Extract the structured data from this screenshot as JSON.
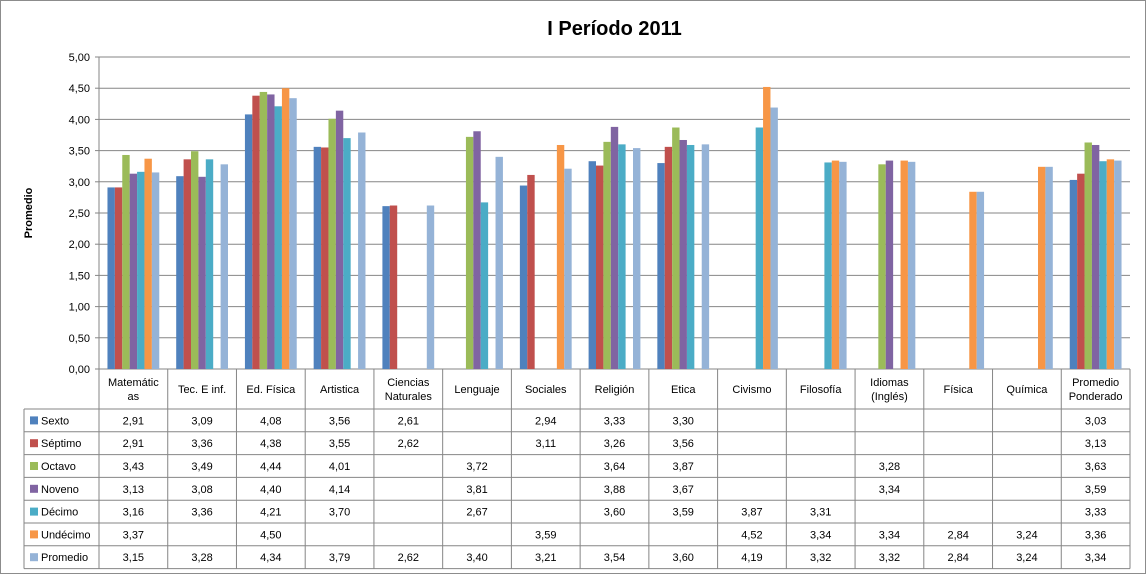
{
  "chart_data": {
    "type": "bar",
    "title": "I Período 2011",
    "ylabel": "Promedio",
    "xlabel": "",
    "ylim": [
      0,
      5
    ],
    "y_ticks": [
      "0,00",
      "0,50",
      "1,00",
      "1,50",
      "2,00",
      "2,50",
      "3,00",
      "3,50",
      "4,00",
      "4,50",
      "5,00"
    ],
    "grid": true,
    "legend_placement": "data-table-left",
    "categories": [
      "Matemáticas",
      "Tec. E inf.",
      "Ed. Física",
      "Artistica",
      "Ciencias Naturales",
      "Lenguaje",
      "Sociales",
      "Religión",
      "Etica",
      "Civismo",
      "Filosofía",
      "Idiomas (Inglés)",
      "Física",
      "Química",
      "Promedio Ponderado"
    ],
    "category_lines": [
      [
        "Matemátic",
        "as"
      ],
      [
        "Tec. E inf."
      ],
      [
        "Ed. Física"
      ],
      [
        "Artistica"
      ],
      [
        "Ciencias",
        "Naturales"
      ],
      [
        "Lenguaje"
      ],
      [
        "Sociales"
      ],
      [
        "Religión"
      ],
      [
        "Etica"
      ],
      [
        "Civismo"
      ],
      [
        "Filosofía"
      ],
      [
        "Idiomas",
        "(Inglés)"
      ],
      [
        "Física"
      ],
      [
        "Química"
      ],
      [
        "Promedio",
        "Ponderado"
      ]
    ],
    "series": [
      {
        "name": "Sexto",
        "color": "#4F81BD",
        "values": [
          2.91,
          3.09,
          4.08,
          3.56,
          2.61,
          null,
          2.94,
          3.33,
          3.3,
          null,
          null,
          null,
          null,
          null,
          3.03
        ],
        "labels": [
          "2,91",
          "3,09",
          "4,08",
          "3,56",
          "2,61",
          "",
          "2,94",
          "3,33",
          "3,30",
          "",
          "",
          "",
          "",
          "",
          "3,03"
        ]
      },
      {
        "name": "Séptimo",
        "color": "#C0504D",
        "values": [
          2.91,
          3.36,
          4.38,
          3.55,
          2.62,
          null,
          3.11,
          3.26,
          3.56,
          null,
          null,
          null,
          null,
          null,
          3.13
        ],
        "labels": [
          "2,91",
          "3,36",
          "4,38",
          "3,55",
          "2,62",
          "",
          "3,11",
          "3,26",
          "3,56",
          "",
          "",
          "",
          "",
          "",
          "3,13"
        ]
      },
      {
        "name": "Octavo",
        "color": "#9BBB59",
        "values": [
          3.43,
          3.49,
          4.44,
          4.01,
          null,
          3.72,
          null,
          3.64,
          3.87,
          null,
          null,
          3.28,
          null,
          null,
          3.63
        ],
        "labels": [
          "3,43",
          "3,49",
          "4,44",
          "4,01",
          "",
          "3,72",
          "",
          "3,64",
          "3,87",
          "",
          "",
          "3,28",
          "",
          "",
          "3,63"
        ]
      },
      {
        "name": "Noveno",
        "color": "#8064A2",
        "values": [
          3.13,
          3.08,
          4.4,
          4.14,
          null,
          3.81,
          null,
          3.88,
          3.67,
          null,
          null,
          3.34,
          null,
          null,
          3.59
        ],
        "labels": [
          "3,13",
          "3,08",
          "4,40",
          "4,14",
          "",
          "3,81",
          "",
          "3,88",
          "3,67",
          "",
          "",
          "3,34",
          "",
          "",
          "3,59"
        ]
      },
      {
        "name": "Décimo",
        "color": "#4BACC6",
        "values": [
          3.16,
          3.36,
          4.21,
          3.7,
          null,
          2.67,
          null,
          3.6,
          3.59,
          3.87,
          3.31,
          null,
          null,
          null,
          3.33
        ],
        "labels": [
          "3,16",
          "3,36",
          "4,21",
          "3,70",
          "",
          "2,67",
          "",
          "3,60",
          "3,59",
          "3,87",
          "3,31",
          "",
          "",
          "",
          "3,33"
        ]
      },
      {
        "name": "Undécimo",
        "color": "#F79646",
        "values": [
          3.37,
          null,
          4.5,
          null,
          null,
          null,
          3.59,
          null,
          null,
          4.52,
          3.34,
          3.34,
          2.84,
          3.24,
          3.36
        ],
        "labels": [
          "3,37",
          "",
          "4,50",
          "",
          "",
          "",
          "3,59",
          "",
          "",
          "4,52",
          "3,34",
          "3,34",
          "2,84",
          "3,24",
          "3,36"
        ]
      },
      {
        "name": "Promedio",
        "color": "#95B3D7",
        "values": [
          3.15,
          3.28,
          4.34,
          3.79,
          2.62,
          3.4,
          3.21,
          3.54,
          3.6,
          4.19,
          3.32,
          3.32,
          2.84,
          3.24,
          3.34
        ],
        "labels": [
          "3,15",
          "3,28",
          "4,34",
          "3,79",
          "2,62",
          "3,40",
          "3,21",
          "3,54",
          "3,60",
          "4,19",
          "3,32",
          "3,32",
          "2,84",
          "3,24",
          "3,34"
        ]
      }
    ]
  }
}
